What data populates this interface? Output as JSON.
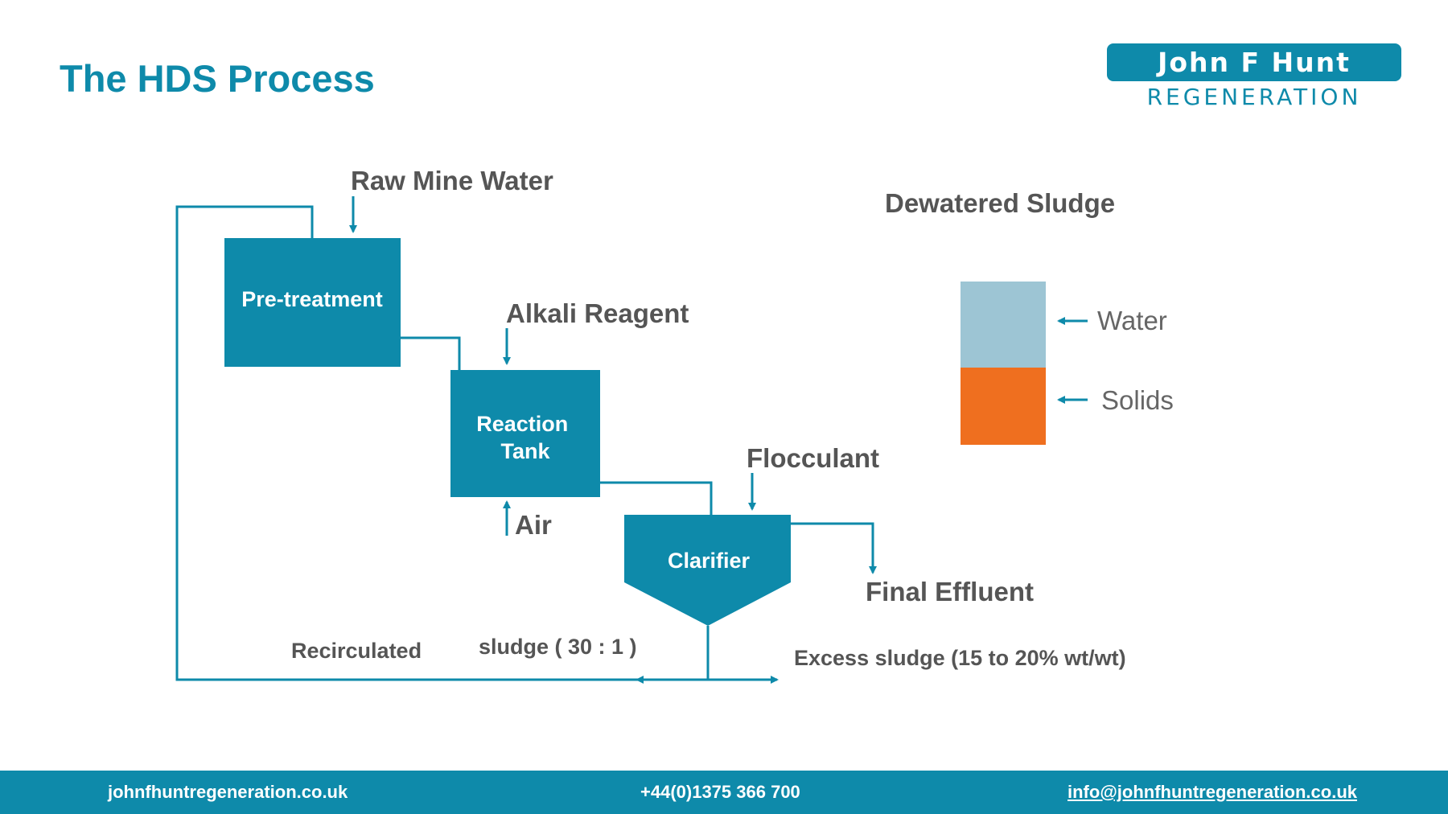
{
  "page": {
    "title": "The HDS Process"
  },
  "logo": {
    "line1": "John F Hunt",
    "line2": "REGENERATION"
  },
  "diagram": {
    "inputs": {
      "raw_mine_water": "Raw Mine Water",
      "alkali_reagent": "Alkali Reagent",
      "air": "Air",
      "flocculant": "Flocculant"
    },
    "units": {
      "pretreatment": "Pre-treatment",
      "reaction_tank_line1": "Reaction",
      "reaction_tank_line2": "Tank",
      "clarifier": "Clarifier"
    },
    "outputs": {
      "final_effluent": "Final Effluent",
      "excess_sludge": "Excess sludge (15 to 20% wt/wt)",
      "recirculated": "Recirculated",
      "recirculated_ratio": "sludge ( 30 : 1 )"
    },
    "colors": {
      "unit_fill": "#0e8aaa",
      "line": "#0e8aaa",
      "water": "#9dc5d4",
      "solids": "#ef6f1f"
    }
  },
  "legend": {
    "title": "Dewatered Sludge",
    "water": "Water",
    "solids": "Solids"
  },
  "footer": {
    "website": "johnfhuntregeneration.co.uk",
    "phone": "+44(0)1375 366 700",
    "email": "info@johnfhuntregeneration.co.uk"
  }
}
